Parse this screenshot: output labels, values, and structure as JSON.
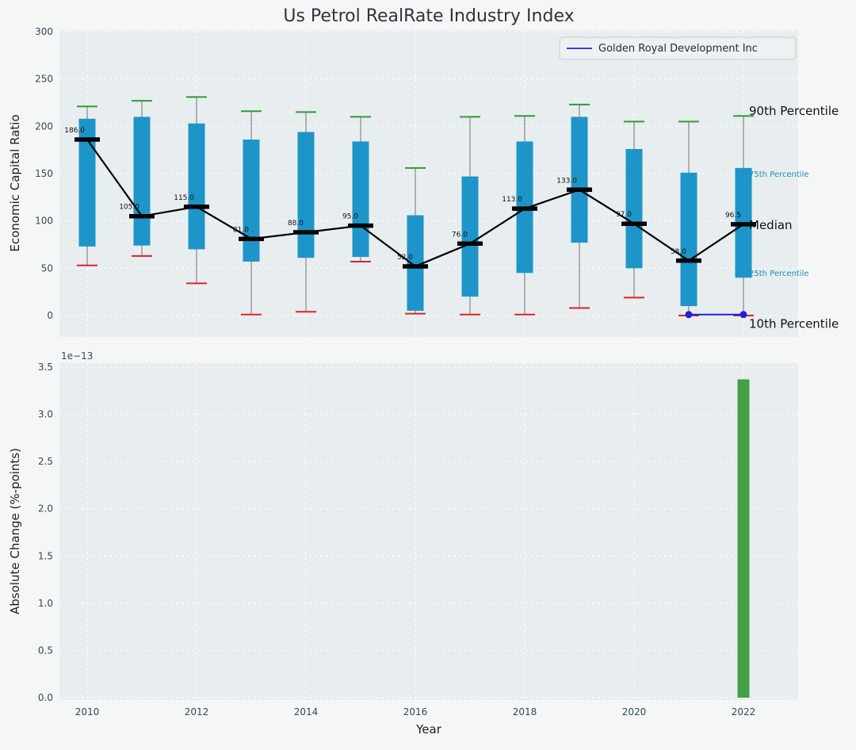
{
  "colors": {
    "figure_background": "#f5f7f7",
    "axes_background": "#e8edef",
    "grid": "#ffffff",
    "tick_label": "#33475b",
    "title": "#31323e",
    "axis_label": "#1f1f1f",
    "box": "#1e95c8",
    "cap_green": "#2e9d32",
    "cap_red": "#e02222",
    "whisker": "#8f8f8f",
    "median": "#000000",
    "company_line": "#2020dd",
    "bar_green": "#43a047",
    "annotation_blue": "#2189b8"
  },
  "chart_data": [
    {
      "type": "boxplot-with-median-line",
      "title": "Us Petrol RealRate Industry Index",
      "ylabel": "Economic Capital Ratio",
      "ylim": [
        -23,
        302
      ],
      "xlim": [
        2009.5,
        2023
      ],
      "grid": "on",
      "legend": {
        "label": "Golden Royal Development Inc",
        "position": "upper right"
      },
      "ytick_labels": [
        "0",
        "50",
        "100",
        "150",
        "200",
        "250",
        "300"
      ],
      "xtick_years": [
        "2010",
        "2012",
        "2014",
        "2016",
        "2018",
        "2020",
        "2022"
      ],
      "years": [
        2010,
        2011,
        2012,
        2013,
        2014,
        2015,
        2016,
        2017,
        2018,
        2019,
        2020,
        2021,
        2022
      ],
      "series": {
        "median": [
          186,
          105,
          115,
          81,
          88,
          95,
          52,
          76,
          113,
          133,
          97,
          58,
          96.5
        ],
        "median_labels": [
          "186.0",
          "105.0",
          "115.0",
          "81.0",
          "88.0",
          "95.0",
          "52.0",
          "76.0",
          "113.0",
          "133.0",
          "97.0",
          "58.0",
          "96.5"
        ],
        "p75": [
          208,
          210,
          203,
          186,
          194,
          184,
          106,
          147,
          184,
          210,
          176,
          151,
          156
        ],
        "p25": [
          73,
          74,
          70,
          57,
          61,
          62,
          5,
          20,
          45,
          77,
          50,
          10,
          40
        ],
        "p90": [
          221,
          227,
          231,
          216,
          215,
          210,
          156,
          210,
          211,
          223,
          205,
          205,
          211
        ],
        "p10": [
          53,
          63,
          34,
          1,
          4,
          57,
          2,
          1,
          1,
          8,
          19,
          0,
          0
        ]
      },
      "company_line": {
        "name": "Golden Royal Development Inc",
        "x": [
          2021,
          2022
        ],
        "y": [
          1,
          1
        ]
      },
      "annotations": [
        {
          "label": "90th Percentile",
          "anchor_value": 216,
          "emphasis": "major"
        },
        {
          "label": "75th Percentile",
          "anchor_value": 151,
          "emphasis": "minor"
        },
        {
          "label": "Median",
          "anchor_value": 95.5,
          "emphasis": "major"
        },
        {
          "label": "25th Percentile",
          "anchor_value": 46,
          "emphasis": "minor"
        },
        {
          "label": "10th Percentile",
          "anchor_value": -9,
          "emphasis": "major"
        }
      ]
    },
    {
      "type": "bar",
      "ylabel": "Absolute Change (%-points)",
      "xlabel": "Year",
      "offset_text": "1e−13",
      "ylim": [
        0,
        3.5
      ],
      "grid": "on",
      "ytick_labels": [
        "0.0",
        "0.5",
        "1.0",
        "1.5",
        "2.0",
        "2.5",
        "3.0",
        "3.5"
      ],
      "xtick_labels": [
        "2010",
        "2012",
        "2014",
        "2016",
        "2018",
        "2020",
        "2022"
      ],
      "bars": [
        {
          "year": 2022,
          "value_1e13": 3.37
        }
      ]
    }
  ]
}
